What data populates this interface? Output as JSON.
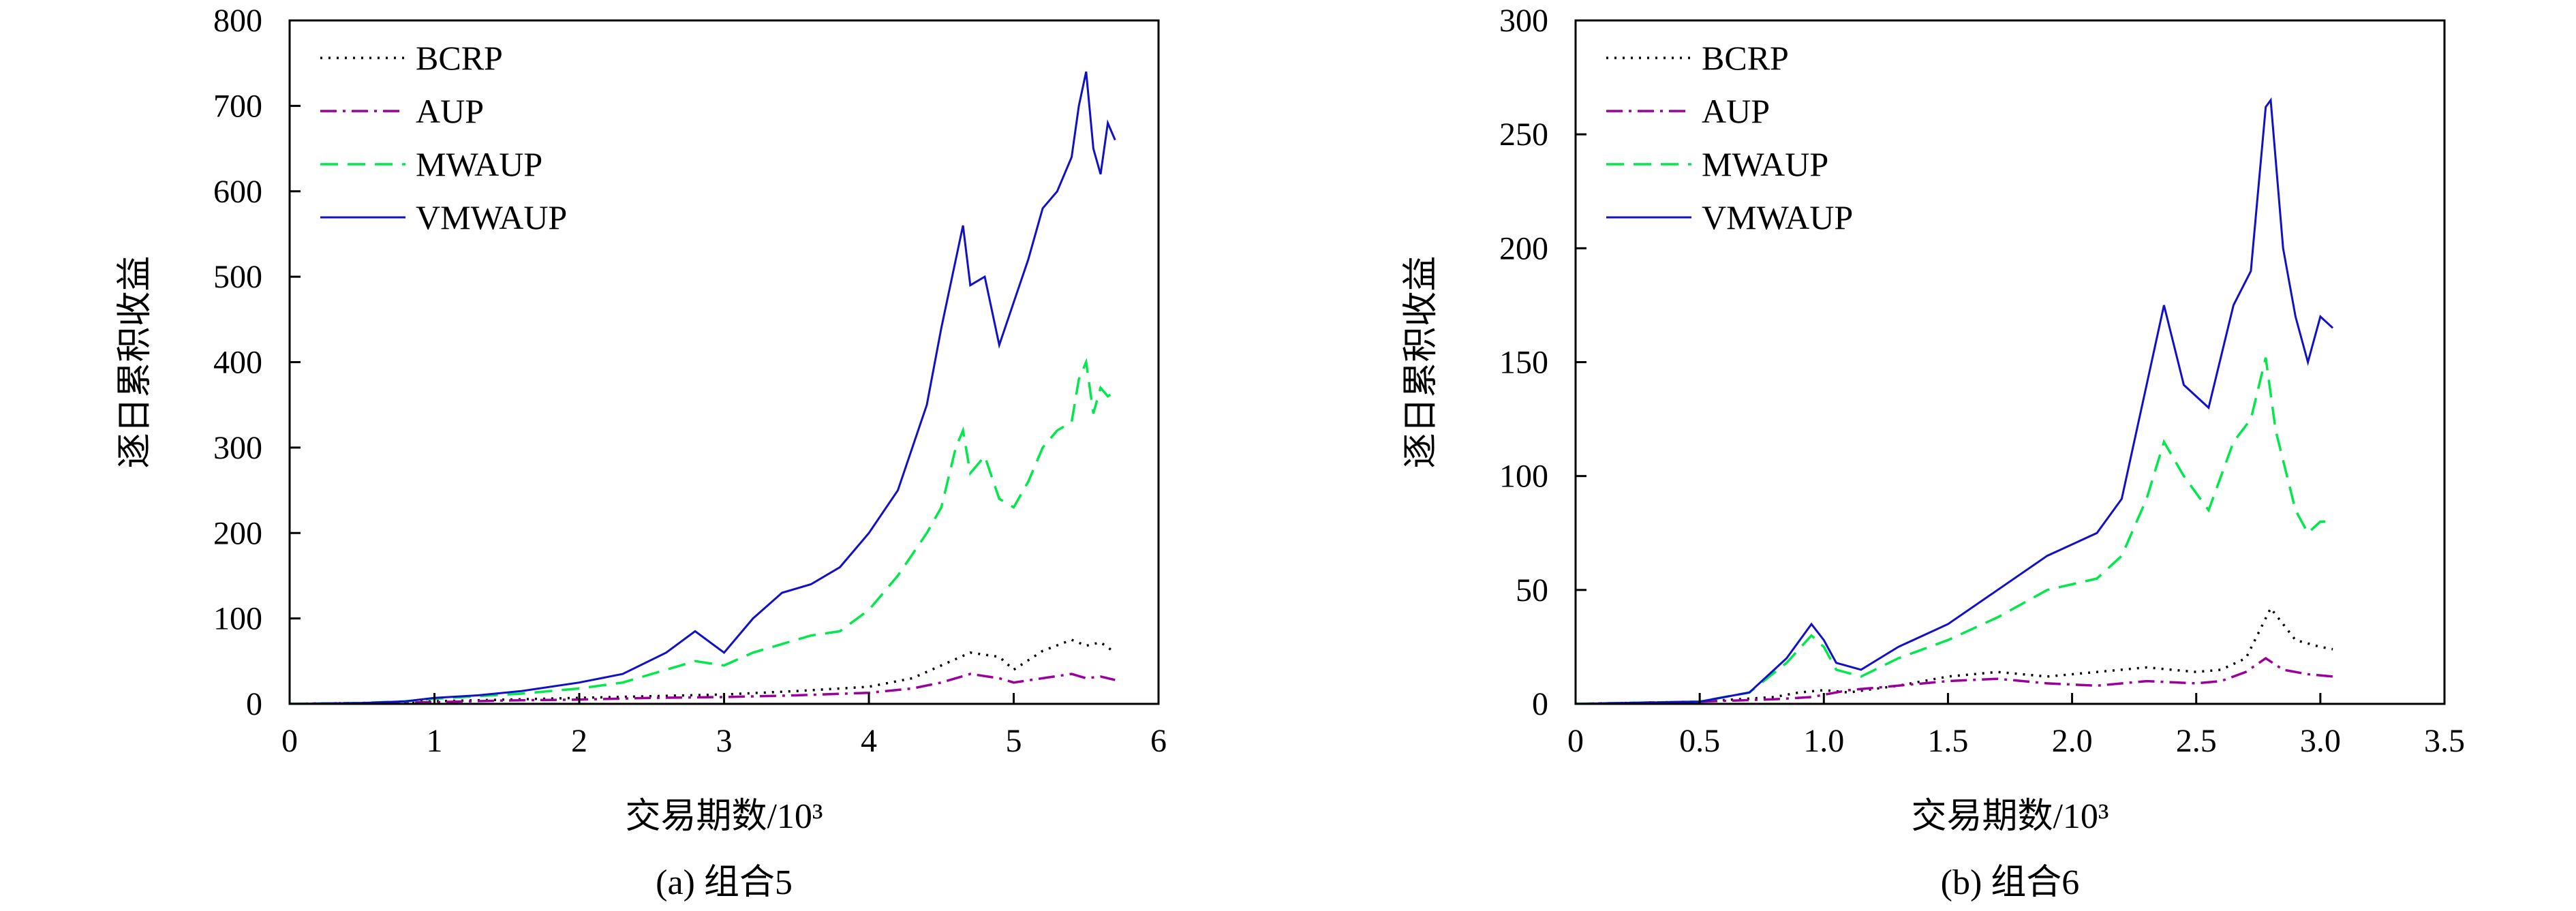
{
  "chart_data": [
    {
      "type": "line",
      "caption": "(a) 组合5",
      "xlabel": "交易期数/10³",
      "ylabel": "逐日累积收益",
      "xlim": [
        0,
        6
      ],
      "ylim": [
        0,
        800
      ],
      "xticks": [
        "0",
        "1",
        "2",
        "3",
        "4",
        "5",
        "6"
      ],
      "yticks": [
        "0",
        "100",
        "200",
        "300",
        "400",
        "500",
        "600",
        "700",
        "800"
      ],
      "legend_position": "top-left",
      "series": [
        {
          "name": "BCRP",
          "color": "#000000",
          "style": "dotted",
          "x": [
            0,
            0.5,
            1.0,
            1.5,
            2.0,
            2.5,
            3.0,
            3.5,
            4.0,
            4.3,
            4.5,
            4.7,
            4.9,
            5.0,
            5.2,
            5.4,
            5.5,
            5.6,
            5.7
          ],
          "y": [
            0,
            1,
            3,
            5,
            7,
            9,
            11,
            15,
            20,
            30,
            45,
            60,
            55,
            40,
            62,
            75,
            68,
            72,
            60
          ]
        },
        {
          "name": "AUP",
          "color": "#9b009b",
          "style": "dashdot",
          "x": [
            0,
            0.5,
            1.0,
            1.5,
            2.0,
            2.5,
            3.0,
            3.5,
            4.0,
            4.3,
            4.5,
            4.7,
            4.9,
            5.0,
            5.2,
            5.4,
            5.5,
            5.6,
            5.7
          ],
          "y": [
            0,
            1,
            2,
            4,
            5,
            7,
            8,
            10,
            13,
            18,
            25,
            35,
            30,
            25,
            30,
            35,
            30,
            32,
            28
          ]
        },
        {
          "name": "MWAUP",
          "color": "#00e84a",
          "style": "dashed",
          "x": [
            0,
            0.5,
            0.8,
            1.0,
            1.3,
            1.6,
            2.0,
            2.3,
            2.6,
            2.8,
            3.0,
            3.2,
            3.4,
            3.6,
            3.8,
            4.0,
            4.2,
            4.4,
            4.5,
            4.6,
            4.65,
            4.7,
            4.8,
            4.9,
            5.0,
            5.1,
            5.2,
            5.3,
            5.4,
            5.45,
            5.5,
            5.55,
            5.6,
            5.65,
            5.7
          ],
          "y": [
            0,
            1,
            3,
            6,
            9,
            12,
            18,
            25,
            40,
            50,
            45,
            60,
            70,
            80,
            85,
            110,
            150,
            200,
            230,
            300,
            320,
            270,
            290,
            240,
            230,
            260,
            300,
            320,
            330,
            380,
            400,
            340,
            370,
            360,
            365
          ]
        },
        {
          "name": "VMWAUP",
          "color": "#1010c8",
          "style": "solid",
          "x": [
            0,
            0.5,
            0.8,
            1.0,
            1.3,
            1.6,
            2.0,
            2.3,
            2.6,
            2.8,
            3.0,
            3.2,
            3.4,
            3.6,
            3.8,
            4.0,
            4.2,
            4.4,
            4.5,
            4.6,
            4.65,
            4.7,
            4.8,
            4.9,
            5.0,
            5.1,
            5.2,
            5.3,
            5.4,
            5.45,
            5.5,
            5.55,
            5.6,
            5.65,
            5.7
          ],
          "y": [
            0,
            1,
            3,
            7,
            10,
            15,
            25,
            35,
            60,
            85,
            60,
            100,
            130,
            140,
            160,
            200,
            250,
            350,
            440,
            520,
            560,
            490,
            500,
            420,
            470,
            520,
            580,
            600,
            640,
            700,
            740,
            650,
            620,
            680,
            660
          ]
        }
      ]
    },
    {
      "type": "line",
      "caption": "(b) 组合6",
      "xlabel": "交易期数/10³",
      "ylabel": "逐日累积收益",
      "xlim": [
        0,
        3.5
      ],
      "ylim": [
        0,
        300
      ],
      "xticks": [
        "0",
        "0.5",
        "1.0",
        "1.5",
        "2.0",
        "2.5",
        "3.0",
        "3.5"
      ],
      "yticks": [
        "0",
        "50",
        "100",
        "150",
        "200",
        "250",
        "300"
      ],
      "legend_position": "top-left",
      "series": [
        {
          "name": "BCRP",
          "color": "#000000",
          "style": "dotted",
          "x": [
            0,
            0.5,
            0.8,
            0.9,
            1.0,
            1.1,
            1.3,
            1.5,
            1.7,
            1.9,
            2.1,
            2.3,
            2.5,
            2.6,
            2.7,
            2.8,
            2.9,
            3.0,
            3.05
          ],
          "y": [
            0,
            1,
            3,
            5,
            6,
            5,
            8,
            12,
            14,
            12,
            14,
            16,
            14,
            15,
            20,
            42,
            28,
            25,
            24
          ]
        },
        {
          "name": "AUP",
          "color": "#9b009b",
          "style": "dashdot",
          "x": [
            0,
            0.5,
            0.8,
            0.95,
            1.1,
            1.3,
            1.5,
            1.7,
            1.9,
            2.1,
            2.3,
            2.5,
            2.6,
            2.7,
            2.78,
            2.85,
            2.95,
            3.05
          ],
          "y": [
            0,
            1,
            2,
            3,
            6,
            8,
            10,
            11,
            9,
            8,
            10,
            9,
            10,
            14,
            20,
            15,
            13,
            12
          ]
        },
        {
          "name": "MWAUP",
          "color": "#00e84a",
          "style": "dashed",
          "x": [
            0,
            0.5,
            0.7,
            0.85,
            0.95,
            1.0,
            1.05,
            1.15,
            1.3,
            1.5,
            1.7,
            1.9,
            2.1,
            2.2,
            2.3,
            2.37,
            2.45,
            2.55,
            2.65,
            2.72,
            2.78,
            2.82,
            2.9,
            2.95,
            3.0,
            3.05
          ],
          "y": [
            0,
            1,
            5,
            18,
            30,
            25,
            15,
            12,
            20,
            28,
            38,
            50,
            55,
            65,
            90,
            115,
            100,
            85,
            115,
            125,
            152,
            120,
            85,
            75,
            80,
            80
          ]
        },
        {
          "name": "VMWAUP",
          "color": "#1010c8",
          "style": "solid",
          "x": [
            0,
            0.5,
            0.7,
            0.85,
            0.95,
            1.0,
            1.05,
            1.15,
            1.3,
            1.5,
            1.7,
            1.9,
            2.1,
            2.2,
            2.3,
            2.37,
            2.45,
            2.55,
            2.65,
            2.72,
            2.78,
            2.8,
            2.85,
            2.9,
            2.95,
            3.0,
            3.05
          ],
          "y": [
            0,
            1,
            5,
            20,
            35,
            28,
            18,
            15,
            25,
            35,
            50,
            65,
            75,
            90,
            140,
            175,
            140,
            130,
            175,
            190,
            262,
            265,
            200,
            170,
            150,
            170,
            165
          ]
        }
      ]
    }
  ]
}
